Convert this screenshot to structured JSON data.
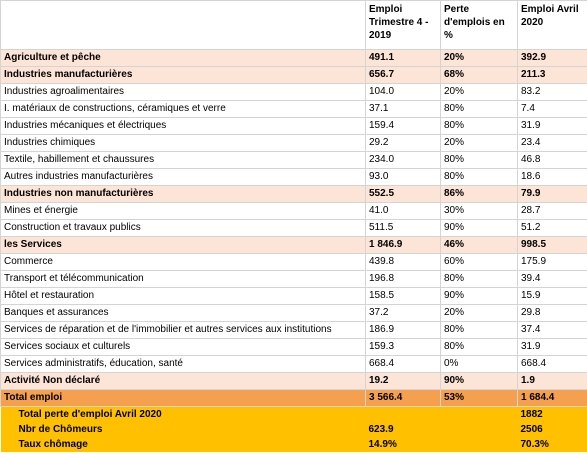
{
  "table": {
    "header": [
      "Emploi Trimestre 4 - 2019",
      "Perte d'emplois en %",
      "Emploi Avril 2020"
    ],
    "rows": [
      {
        "cells": [
          "Agriculture et pêche",
          "491.1",
          "20%",
          "392.9"
        ],
        "fill": "#fce4d6",
        "bold": true
      },
      {
        "cells": [
          "Industries manufacturières",
          "656.7",
          "68%",
          "211.3"
        ],
        "fill": "#fce4d6",
        "bold": true
      },
      {
        "cells": [
          "Industries agroalimentaires",
          "104.0",
          "20%",
          "83.2"
        ]
      },
      {
        "cells": [
          "I. matériaux de constructions, céramiques et verre",
          "37.1",
          "80%",
          "7.4"
        ]
      },
      {
        "cells": [
          "Industries mécaniques et électriques",
          "159.4",
          "80%",
          "31.9"
        ]
      },
      {
        "cells": [
          "Industries chimiques",
          "29.2",
          "20%",
          "23.4"
        ]
      },
      {
        "cells": [
          "Textile, habillement et chaussures",
          "234.0",
          "80%",
          "46.8"
        ]
      },
      {
        "cells": [
          "Autres industries manufacturières",
          "93.0",
          "80%",
          "18.6"
        ]
      },
      {
        "cells": [
          "Industries non manufacturières",
          "552.5",
          "86%",
          "79.9"
        ],
        "fill": "#fce4d6",
        "bold": true
      },
      {
        "cells": [
          "Mines et énergie",
          "41.0",
          "30%",
          "28.7"
        ]
      },
      {
        "cells": [
          "Construction et travaux publics",
          "511.5",
          "90%",
          "51.2"
        ]
      },
      {
        "cells": [
          "les Services",
          "1 846.9",
          "46%",
          "998.5"
        ],
        "fill": "#fce4d6",
        "bold": true
      },
      {
        "cells": [
          "Commerce",
          "439.8",
          "60%",
          "175.9"
        ]
      },
      {
        "cells": [
          "Transport et télécommunication",
          "196.8",
          "80%",
          "39.4"
        ]
      },
      {
        "cells": [
          "Hôtel et restauration",
          "158.5",
          "90%",
          "15.9"
        ]
      },
      {
        "cells": [
          "Banques et assurances",
          "37.2",
          "20%",
          "29.8"
        ]
      },
      {
        "cells": [
          "Services de réparation et de l'immobilier et autres services aux institutions",
          "186.9",
          "80%",
          "37.4"
        ]
      },
      {
        "cells": [
          "Services sociaux et culturels",
          "159.3",
          "80%",
          "31.9"
        ]
      },
      {
        "cells": [
          "Services administratifs, éducation, santé",
          "668.4",
          "0%",
          "668.4"
        ]
      },
      {
        "cells": [
          "Activité Non déclaré",
          "19.2",
          "90%",
          "1.9"
        ],
        "fill": "#fce4d6",
        "bold": true
      },
      {
        "cells": [
          "Total emploi",
          "3 566.4",
          "53%",
          "1 684.4"
        ],
        "fill": "#f4a04e",
        "bold": true
      }
    ],
    "summary": [
      {
        "cells": [
          "Total perte d'emploi Avril 2020",
          null,
          null,
          "1882"
        ],
        "fill": "#ffc000",
        "bold": true
      },
      {
        "cells": [
          "Nbr de Chômeurs",
          "623.9",
          null,
          "2506"
        ],
        "fill": "#ffc000",
        "bold": true
      },
      {
        "cells": [
          "Taux chômage",
          "14.9%",
          null,
          "70.3%"
        ],
        "fill": "#ffc000",
        "bold": true
      }
    ]
  }
}
